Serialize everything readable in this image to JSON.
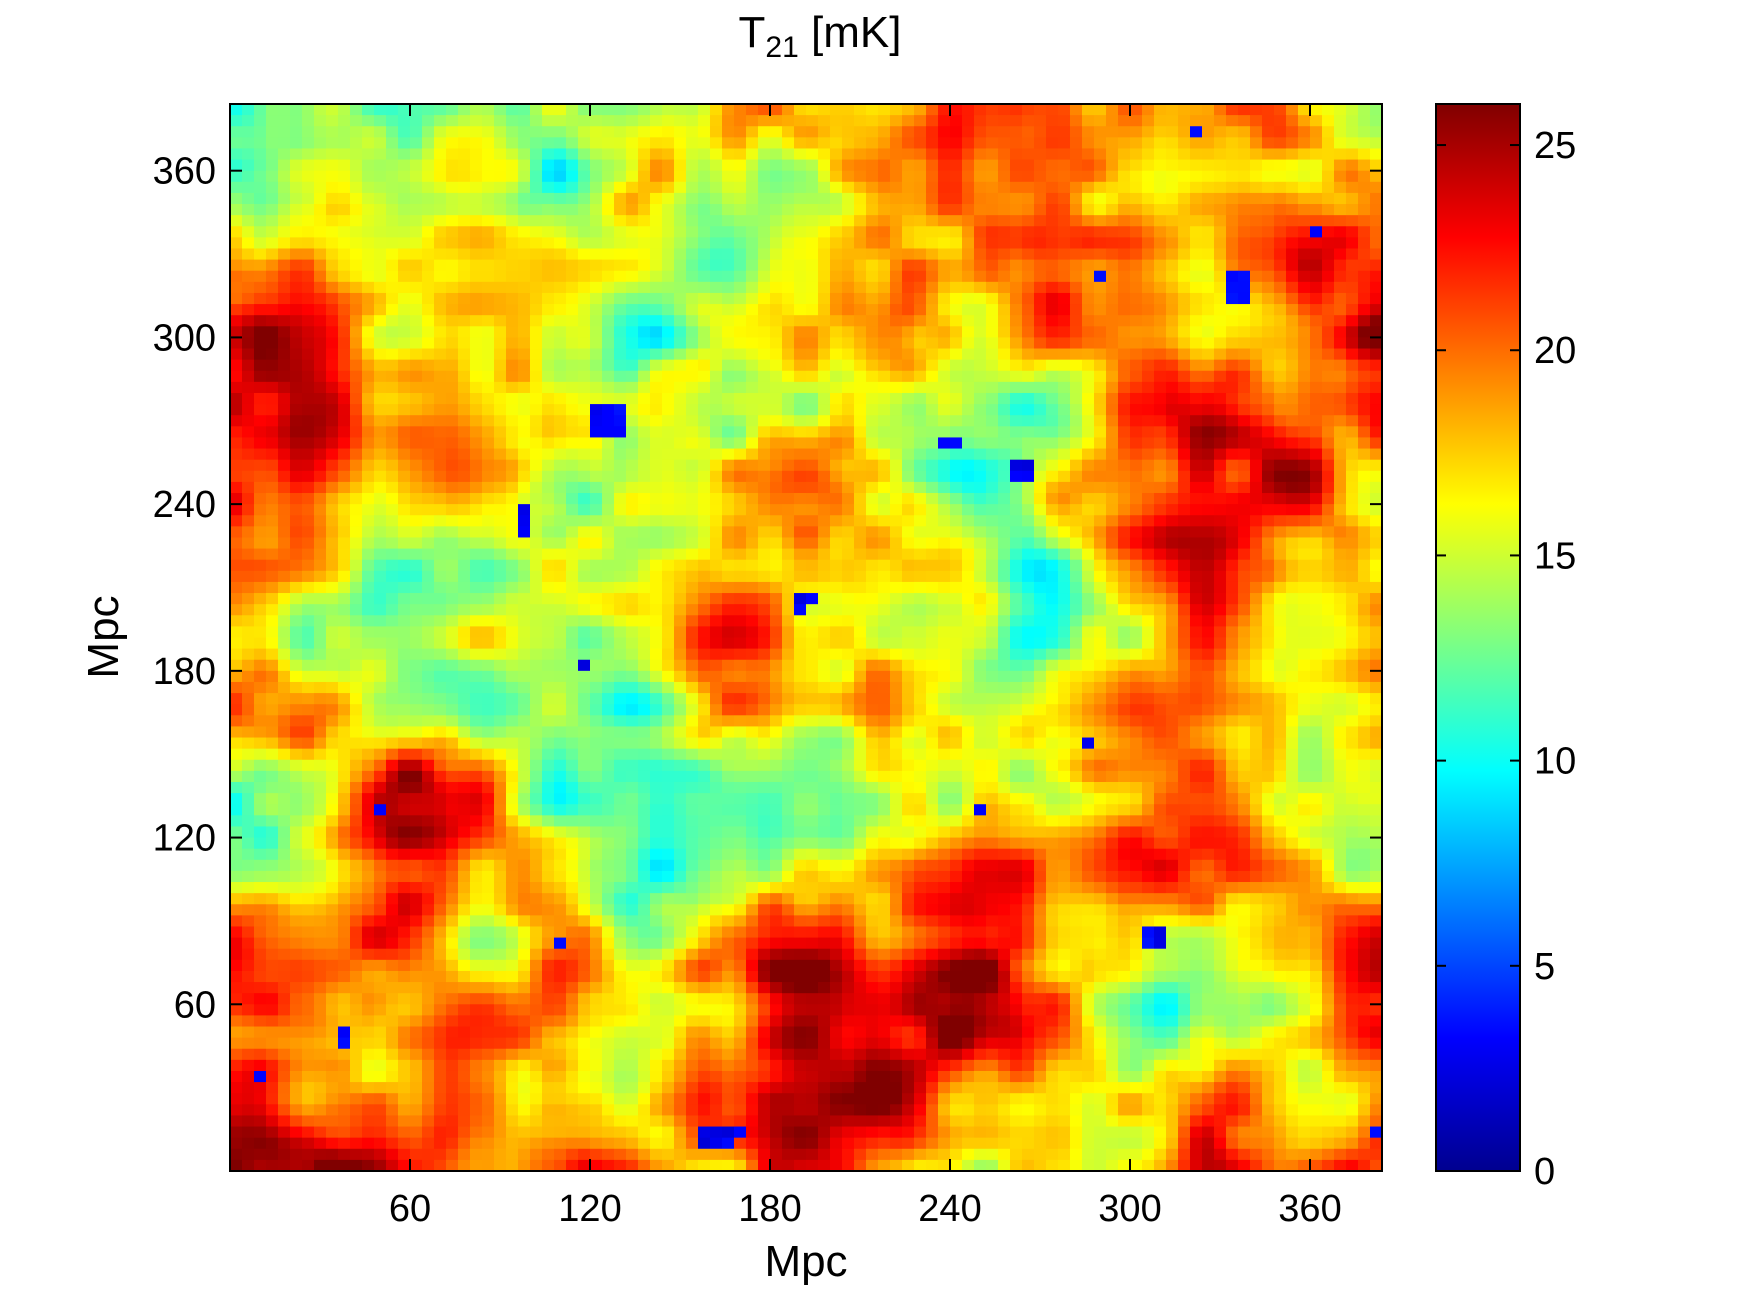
{
  "chart_data": {
    "type": "heatmap",
    "title": "T",
    "title_subscript": "21",
    "title_unit": "[mK]",
    "xlabel": "Mpc",
    "ylabel": "Mpc",
    "xlim": [
      0,
      384
    ],
    "ylim": [
      0,
      384
    ],
    "x_ticks": [
      60,
      120,
      180,
      240,
      300,
      360
    ],
    "y_ticks": [
      60,
      120,
      180,
      240,
      300,
      360
    ],
    "colorbar": {
      "colormap": "jet",
      "range": [
        0,
        26
      ],
      "ticks": [
        0,
        5,
        10,
        15,
        20,
        25
      ]
    },
    "field_description_values": {
      "mean_approx": 18,
      "min_approx": 0,
      "max_approx": 26
    }
  },
  "colors": {
    "jet": [
      "#00008f",
      "#0000ff",
      "#0080ff",
      "#00ffff",
      "#80ff80",
      "#ffff00",
      "#ff8000",
      "#ff0000",
      "#800000"
    ]
  }
}
